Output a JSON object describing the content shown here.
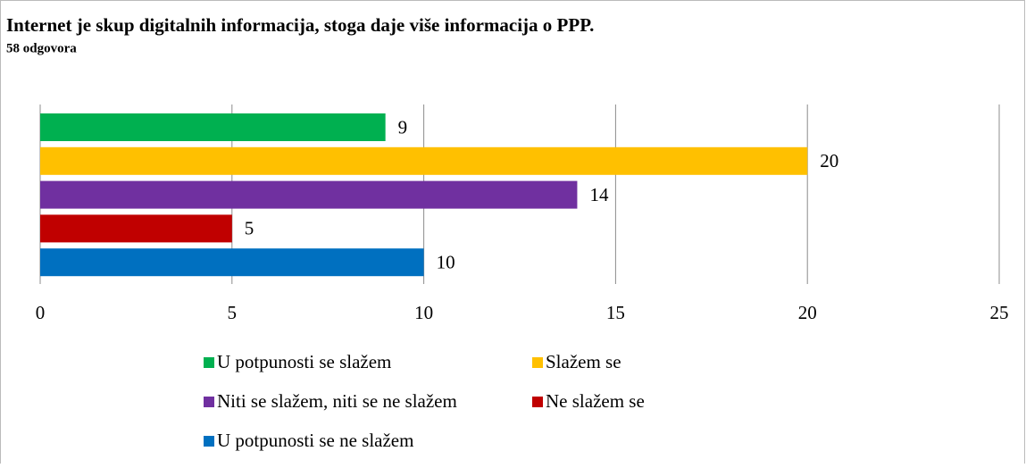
{
  "chart_data": {
    "type": "bar",
    "orientation": "horizontal",
    "title": "Internet je skup digitalnih informacija, stoga daje više informacija o PPP.",
    "subtitle": "58 odgovora",
    "series": [
      {
        "name": "U potpunosti se slažem",
        "color": "#00b050",
        "values": [
          9
        ]
      },
      {
        "name": "Slažem se",
        "color": "#ffc000",
        "values": [
          20
        ]
      },
      {
        "name": "Niti se slažem, niti se ne slažem",
        "color": "#7030a0",
        "values": [
          14
        ]
      },
      {
        "name": "Ne slažem se",
        "color": "#c00000",
        "values": [
          5
        ]
      },
      {
        "name": "U potpunosti se ne slažem",
        "color": "#0070c0",
        "values": [
          10
        ]
      }
    ],
    "xlim": [
      0,
      25
    ],
    "xticks": [
      0,
      5,
      10,
      15,
      20,
      25
    ],
    "grid": true,
    "legend": "bottom"
  }
}
